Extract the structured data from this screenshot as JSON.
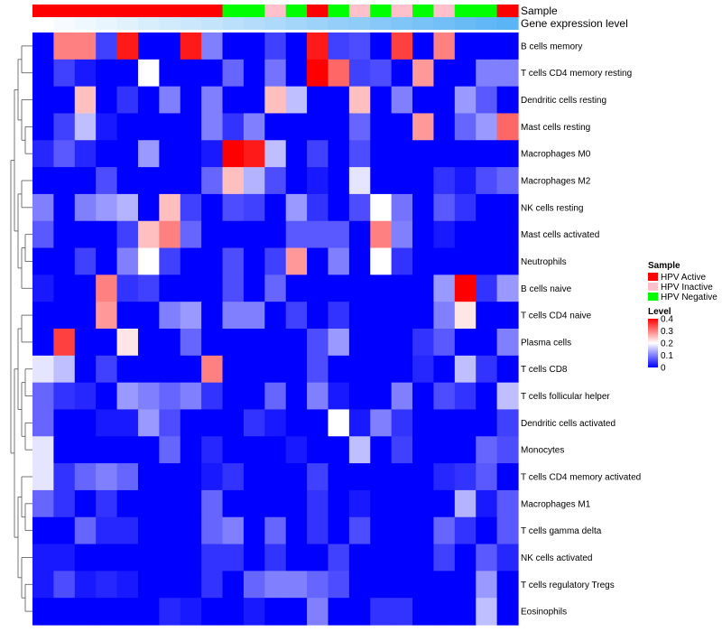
{
  "chart_data": {
    "type": "heatmap",
    "title": "",
    "annotation_rows": [
      {
        "label": "Sample",
        "values": [
          "HPV Active",
          "HPV Active",
          "HPV Active",
          "HPV Active",
          "HPV Active",
          "HPV Active",
          "HPV Active",
          "HPV Active",
          "HPV Active",
          "HPV Negative",
          "HPV Negative",
          "HPV Inactive",
          "HPV Negative",
          "HPV Active",
          "HPV Negative",
          "HPV Inactive",
          "HPV Negative",
          "HPV Inactive",
          "HPV Negative",
          "HPV Inactive",
          "HPV Negative",
          "HPV Negative",
          "HPV Active"
        ]
      },
      {
        "label": "Gene expression level",
        "values": [
          0.0,
          0.05,
          0.1,
          0.14,
          0.18,
          0.23,
          0.27,
          0.32,
          0.36,
          0.41,
          0.45,
          0.5,
          0.55,
          0.59,
          0.64,
          0.68,
          0.73,
          0.77,
          0.82,
          0.86,
          0.91,
          0.95,
          1.0
        ]
      }
    ],
    "rows": [
      "B cells memory",
      "T cells CD4 memory resting",
      "Dendritic cells resting",
      "Mast cells resting",
      "Macrophages M0",
      "Macrophages M2",
      "NK cells resting",
      "Mast cells activated",
      "Neutrophils",
      "B cells naive",
      "T cells CD4 naive",
      "Plasma cells",
      "T cells CD8",
      "T cells follicular helper",
      "Dendritic cells activated",
      "Monocytes",
      "T cells CD4 memory activated",
      "Macrophages M1",
      "T cells gamma delta",
      "NK cells activated",
      "T cells regulatory  Tregs",
      "Eosinophils"
    ],
    "n_columns": 23,
    "values": [
      [
        0,
        0.3,
        0.3,
        0.05,
        0.38,
        0,
        0,
        0.38,
        0.1,
        0,
        0,
        0.05,
        0,
        0.38,
        0.05,
        0.06,
        0,
        0.35,
        0,
        0.3,
        0,
        0,
        0
      ],
      [
        0,
        0.05,
        0.02,
        0,
        0,
        0.2,
        0,
        0,
        0,
        0.08,
        0,
        0.09,
        0,
        0.4,
        0.32,
        0.05,
        0.06,
        0,
        0.28,
        0,
        0,
        0.1,
        0.1
      ],
      [
        0,
        0,
        0.25,
        0,
        0.04,
        0,
        0.1,
        0,
        0.1,
        0,
        0,
        0.25,
        0.15,
        0,
        0,
        0.25,
        0,
        0.1,
        0,
        0,
        0.12,
        0.07,
        0
      ],
      [
        0,
        0.05,
        0.15,
        0.02,
        0,
        0,
        0,
        0,
        0.1,
        0.04,
        0.1,
        0,
        0,
        0,
        0,
        0.08,
        0,
        0,
        0.28,
        0,
        0.08,
        0.12,
        0.32
      ],
      [
        0.03,
        0.07,
        0.03,
        0,
        0,
        0.12,
        0,
        0,
        0.02,
        0.4,
        0.38,
        0.15,
        0,
        0.05,
        0,
        0.06,
        0,
        0,
        0,
        0,
        0,
        0,
        0
      ],
      [
        0,
        0,
        0,
        0.06,
        0,
        0,
        0,
        0,
        0.08,
        0.25,
        0.14,
        0.06,
        0,
        0.02,
        0,
        0.18,
        0,
        0,
        0,
        0.04,
        0.02,
        0.06,
        0.08
      ],
      [
        0.1,
        0,
        0.1,
        0.12,
        0.14,
        0,
        0.25,
        0.05,
        0,
        0.06,
        0.05,
        0,
        0.12,
        0.04,
        0,
        0.06,
        0.2,
        0.09,
        0,
        0.07,
        0.04,
        0,
        0
      ],
      [
        0.07,
        0,
        0,
        0,
        0.05,
        0.25,
        0.3,
        0.08,
        0,
        0,
        0,
        0,
        0.07,
        0.07,
        0.07,
        0,
        0.3,
        0.1,
        0,
        0.02,
        0,
        0,
        0
      ],
      [
        0,
        0,
        0.05,
        0,
        0.1,
        0.2,
        0.05,
        0,
        0,
        0.06,
        0,
        0.05,
        0.28,
        0,
        0.1,
        0,
        0.2,
        0.04,
        0,
        0,
        0,
        0,
        0
      ],
      [
        0.02,
        0,
        0,
        0.3,
        0.04,
        0.05,
        0,
        0,
        0,
        0.06,
        0,
        0.08,
        0,
        0,
        0,
        0,
        0,
        0,
        0,
        0.12,
        0.4,
        0.04,
        0.12
      ],
      [
        0,
        0,
        0,
        0.28,
        0,
        0,
        0.1,
        0.12,
        0,
        0.1,
        0.1,
        0,
        0.05,
        0,
        0.04,
        0,
        0,
        0,
        0,
        0.1,
        0.22,
        0,
        0
      ],
      [
        0,
        0.35,
        0,
        0,
        0.22,
        0,
        0,
        0.08,
        0,
        0,
        0,
        0,
        0,
        0.06,
        0.12,
        0,
        0,
        0,
        0.04,
        0.07,
        0,
        0,
        0.1
      ],
      [
        0.18,
        0.15,
        0,
        0.05,
        0,
        0,
        0,
        0,
        0.3,
        0,
        0,
        0,
        0,
        0.06,
        0,
        0,
        0,
        0,
        0.03,
        0,
        0.15,
        0.04,
        0
      ],
      [
        0.08,
        0.04,
        0.03,
        0,
        0.12,
        0.1,
        0.08,
        0.1,
        0.04,
        0,
        0,
        0.08,
        0,
        0.1,
        0.02,
        0,
        0,
        0.1,
        0,
        0.06,
        0.04,
        0,
        0.15
      ],
      [
        0.08,
        0,
        0,
        0.02,
        0.02,
        0.12,
        0.06,
        0,
        0,
        0,
        0.04,
        0.02,
        0,
        0,
        0.2,
        0.02,
        0.1,
        0.04,
        0,
        0,
        0,
        0,
        0.05
      ],
      [
        0.18,
        0,
        0,
        0,
        0,
        0,
        0.08,
        0,
        0.03,
        0,
        0,
        0,
        0.02,
        0,
        0,
        0.15,
        0,
        0.05,
        0,
        0,
        0,
        0.08,
        0.06
      ],
      [
        0.18,
        0.04,
        0.08,
        0.1,
        0.08,
        0,
        0,
        0,
        0.02,
        0.04,
        0,
        0,
        0,
        0.05,
        0,
        0,
        0,
        0,
        0,
        0.03,
        0.04,
        0.07,
        0
      ],
      [
        0.08,
        0.04,
        0,
        0.04,
        0,
        0,
        0,
        0,
        0.08,
        0,
        0,
        0,
        0,
        0.04,
        0,
        0.02,
        0,
        0,
        0,
        0,
        0.14,
        0.02,
        0.07
      ],
      [
        0,
        0,
        0.08,
        0.03,
        0.03,
        0,
        0,
        0,
        0.08,
        0.1,
        0,
        0.08,
        0,
        0.04,
        0,
        0.06,
        0,
        0,
        0,
        0.08,
        0.04,
        0,
        0.07
      ],
      [
        0.02,
        0.02,
        0,
        0,
        0,
        0,
        0,
        0,
        0.04,
        0.04,
        0,
        0.04,
        0,
        0,
        0.05,
        0,
        0,
        0,
        0,
        0.05,
        0,
        0.07,
        0.03
      ],
      [
        0.02,
        0.06,
        0.02,
        0.03,
        0.02,
        0,
        0,
        0,
        0.04,
        0,
        0.08,
        0.1,
        0.1,
        0.08,
        0.06,
        0,
        0,
        0,
        0,
        0,
        0,
        0.12,
        0
      ],
      [
        0,
        0,
        0,
        0,
        0,
        0,
        0.03,
        0.02,
        0,
        0,
        0.02,
        0,
        0,
        0.1,
        0,
        0,
        0.04,
        0.04,
        0,
        0,
        0,
        0.15,
        0
      ]
    ],
    "dendrogram_pairs": [
      [
        3,
        4
      ],
      [
        7,
        8
      ],
      [
        12,
        13
      ],
      [
        14,
        15
      ],
      [
        17,
        18
      ],
      [
        20,
        21
      ]
    ],
    "legend": {
      "sample": {
        "title": "Sample",
        "items": [
          {
            "label": "HPV Active",
            "color": "#ff0000"
          },
          {
            "label": "HPV Inactive",
            "color": "#ffc0cb"
          },
          {
            "label": "HPV Negative",
            "color": "#00ff00"
          }
        ]
      },
      "level": {
        "title": "Level",
        "ticks": [
          0.4,
          0.3,
          0.2,
          0.1,
          0
        ],
        "range": [
          0,
          0.4
        ]
      }
    },
    "colors": {
      "low": "#0000ff",
      "mid": "#ffffff",
      "high": "#ff0000",
      "level_low": "#ffffff",
      "level_high": "#5ab4f5"
    }
  }
}
